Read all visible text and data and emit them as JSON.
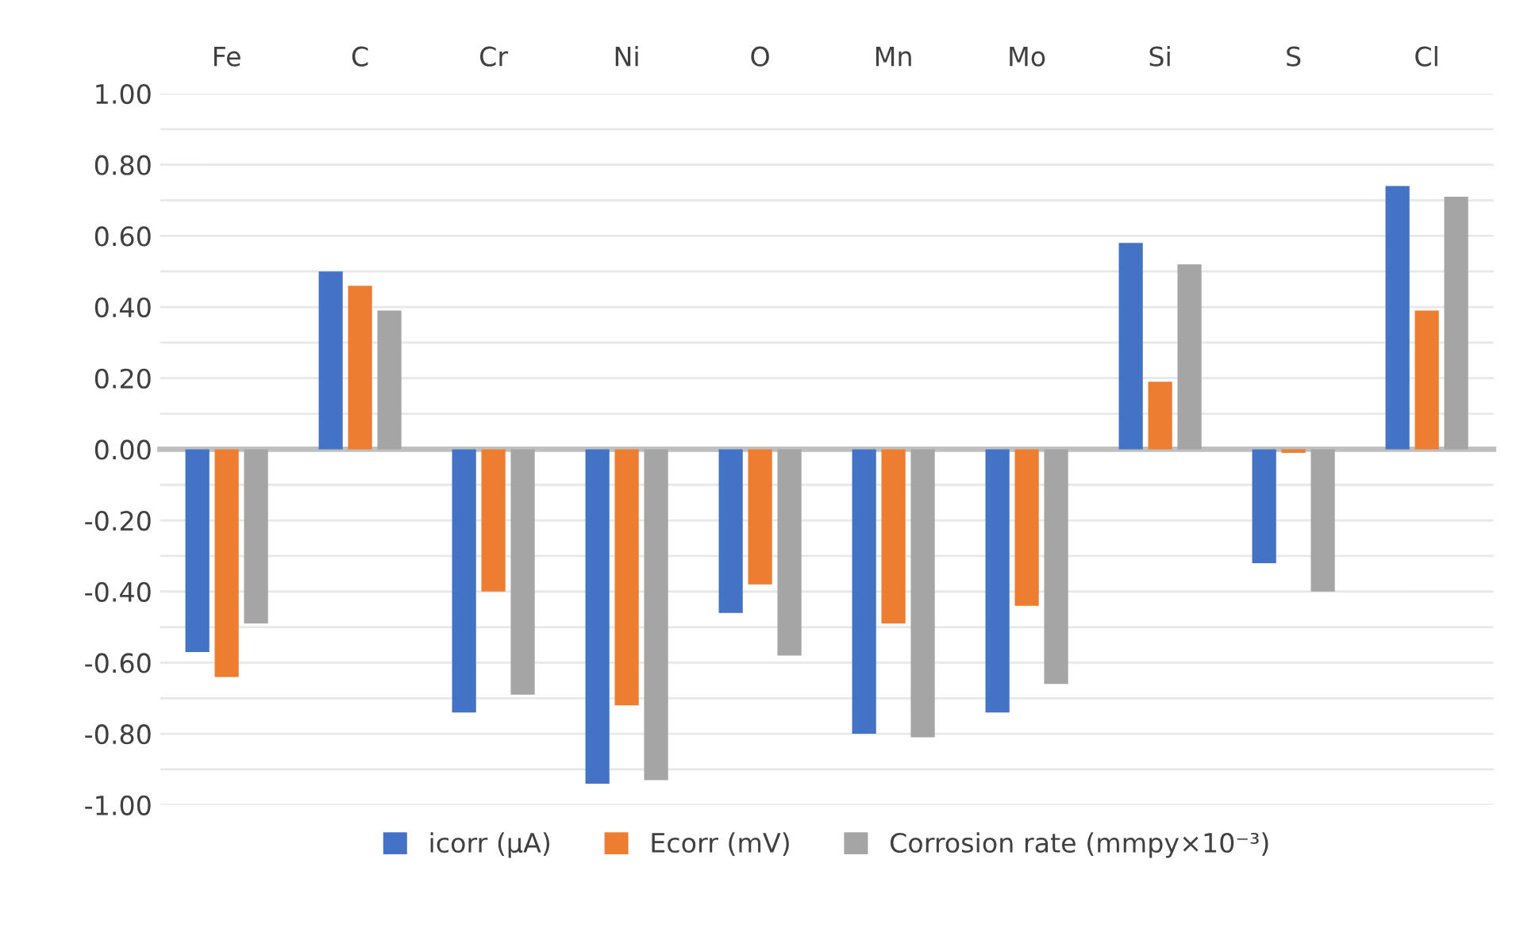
{
  "chart_data": {
    "type": "bar",
    "categories": [
      "Fe",
      "C",
      "Cr",
      "Ni",
      "O",
      "Mn",
      "Mo",
      "Si",
      "S",
      "Cl"
    ],
    "series": [
      {
        "name": "icorr (µA)",
        "color": "#4472c4",
        "values": [
          -0.57,
          0.5,
          -0.74,
          -0.94,
          -0.46,
          -0.8,
          -0.74,
          0.58,
          -0.32,
          0.74
        ]
      },
      {
        "name": "Ecorr (mV)",
        "color": "#ed7d31",
        "values": [
          -0.64,
          0.46,
          -0.4,
          -0.72,
          -0.38,
          -0.49,
          -0.44,
          0.19,
          -0.01,
          0.39
        ]
      },
      {
        "name": "Corrosion rate (mmpy×10⁻³)",
        "color": "#a5a5a5",
        "values": [
          -0.49,
          0.39,
          -0.69,
          -0.93,
          -0.58,
          -0.81,
          -0.66,
          0.52,
          -0.4,
          0.71
        ]
      }
    ],
    "ylim": [
      -1,
      1
    ],
    "yticks": [
      {
        "value": 1,
        "label": "1.00"
      },
      {
        "value": 0.9,
        "label": null
      },
      {
        "value": 0.8,
        "label": "0.80"
      },
      {
        "value": 0.7,
        "label": null
      },
      {
        "value": 0.6,
        "label": "0.60"
      },
      {
        "value": 0.5,
        "label": null
      },
      {
        "value": 0.4,
        "label": "0.40"
      },
      {
        "value": 0.3,
        "label": null
      },
      {
        "value": 0.2,
        "label": "0.20"
      },
      {
        "value": 0.1,
        "label": null
      },
      {
        "value": 0,
        "label": "0.00"
      },
      {
        "value": -0.1,
        "label": null
      },
      {
        "value": -0.2,
        "label": "-0.20"
      },
      {
        "value": -0.3,
        "label": null
      },
      {
        "value": -0.4,
        "label": "-0.40"
      },
      {
        "value": -0.5,
        "label": null
      },
      {
        "value": -0.6,
        "label": "-0.60"
      },
      {
        "value": -0.7,
        "label": null
      },
      {
        "value": -0.8,
        "label": "-0.80"
      },
      {
        "value": -0.9,
        "label": null
      },
      {
        "value": -1,
        "label": "-1.00"
      }
    ],
    "grid": "y",
    "legend": "bottom"
  }
}
